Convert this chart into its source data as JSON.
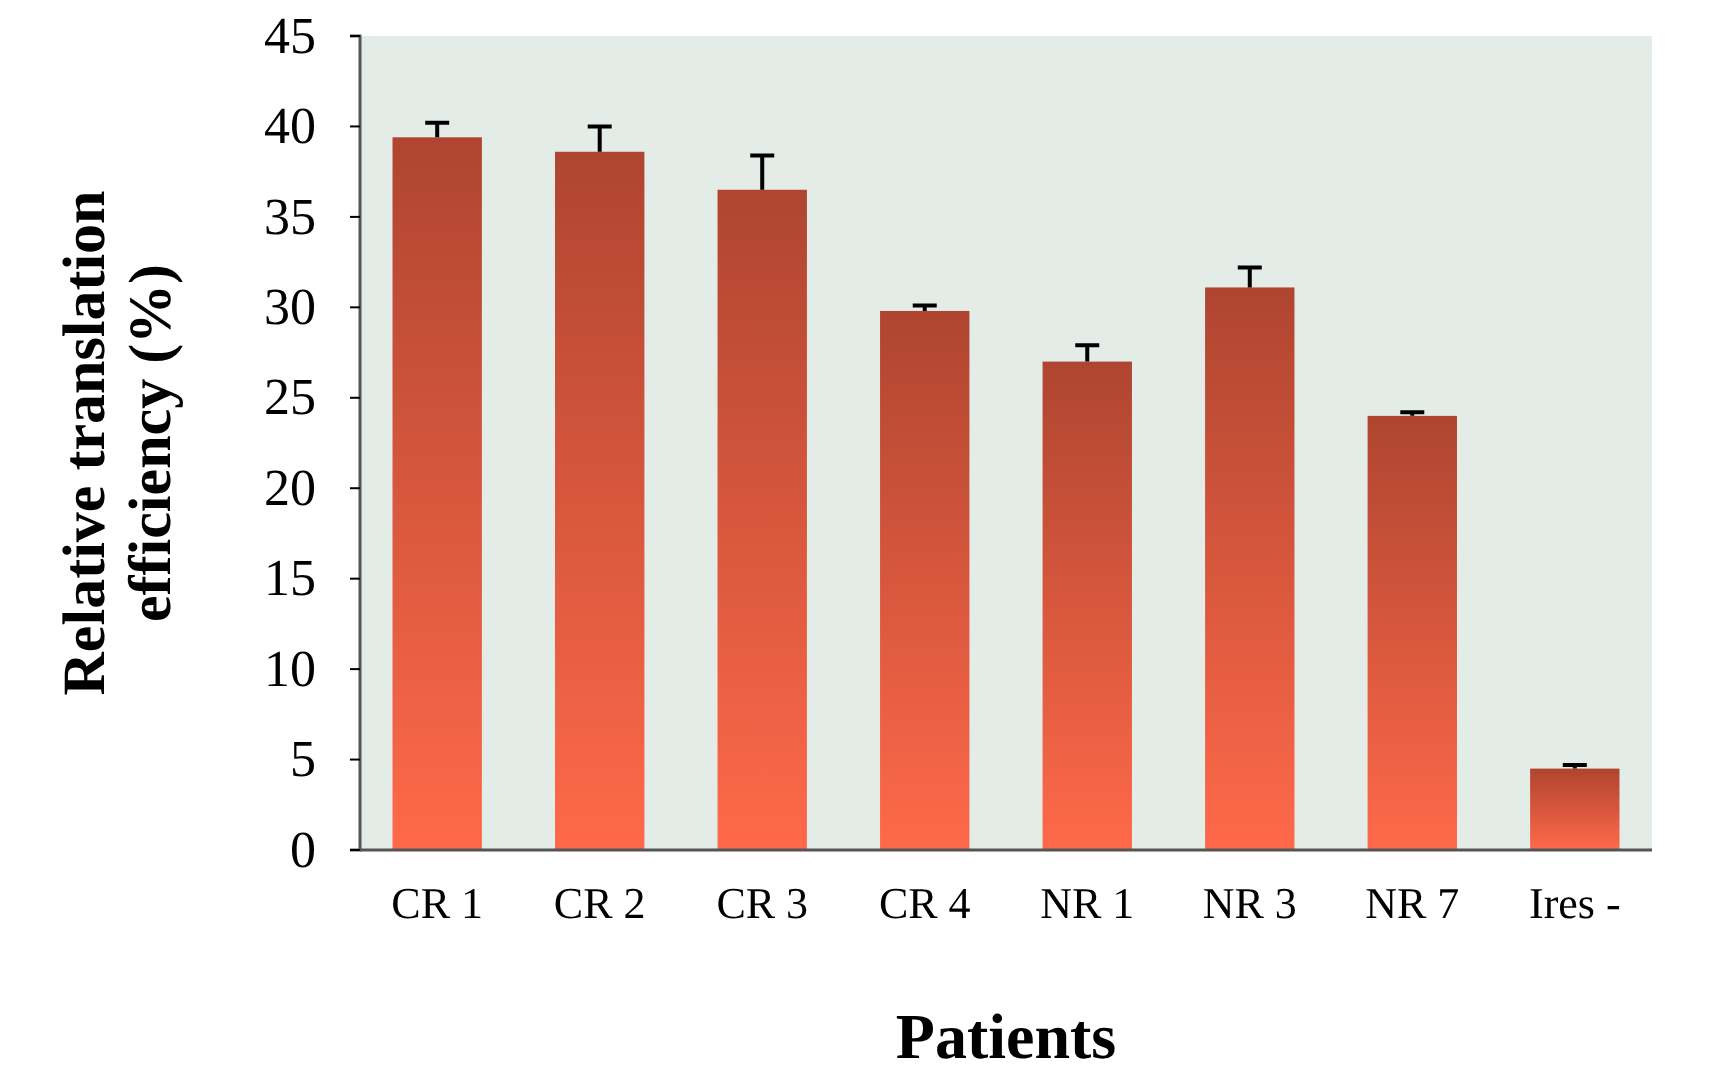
{
  "chart_data": {
    "type": "bar",
    "xlabel": "Patients",
    "ylabel": "Relative translation efficiency (%)",
    "categories": [
      "CR 1",
      "CR 2",
      "CR 3",
      "CR 4",
      "NR 1",
      "NR 3",
      "NR 7",
      "Ires -"
    ],
    "values": [
      39.4,
      38.6,
      36.5,
      29.8,
      27.0,
      31.1,
      24.0,
      4.5
    ],
    "errors": [
      [
        39.4,
        40.2
      ],
      [
        38.6,
        40.0
      ],
      [
        36.5,
        38.4
      ],
      [
        29.8,
        30.1
      ],
      [
        27.0,
        27.9
      ],
      [
        31.1,
        32.2
      ],
      [
        24.0,
        24.2
      ],
      [
        4.5,
        4.7
      ]
    ],
    "color": "#d9553c",
    "ylim": [
      0,
      45
    ],
    "yticks": [
      0,
      5,
      10,
      15,
      20,
      25,
      30,
      35,
      40,
      45
    ],
    "grid": false
  }
}
